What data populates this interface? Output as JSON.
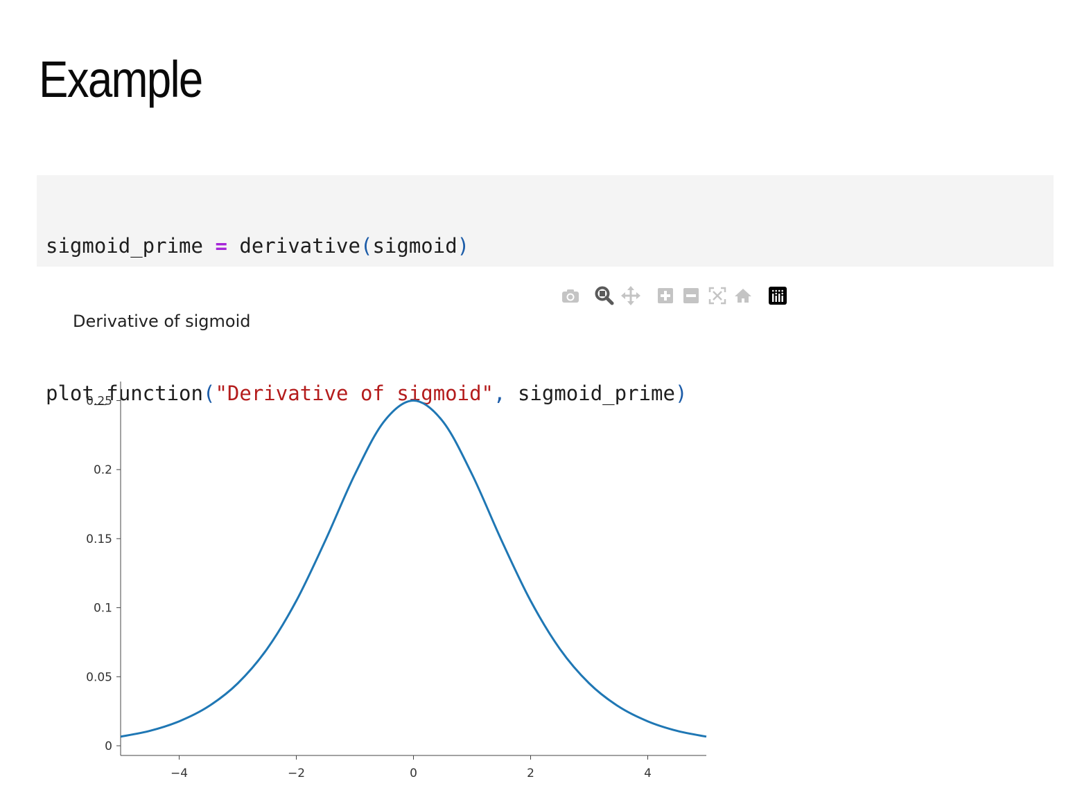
{
  "slide": {
    "title": "Example"
  },
  "code": {
    "line1": {
      "var": "sigmoid_prime ",
      "op": "=",
      "call": " derivative",
      "open": "(",
      "arg": "sigmoid",
      "close": ")"
    },
    "line2": {
      "call": "plot_function",
      "open": "(",
      "str": "\"Derivative of sigmoid\"",
      "comma": ",",
      "arg": " sigmoid_prime",
      "close": ")"
    }
  },
  "modebar": {
    "buttons": [
      "camera-icon",
      "zoom-icon",
      "pan-icon",
      "zoom-in-icon",
      "zoom-out-icon",
      "autoscale-icon",
      "reset-axes-icon",
      "plotly-logo-icon"
    ]
  },
  "colors": {
    "line": "#1f77b4",
    "code_bg": "#f4f4f4",
    "keyword_op": "#a626d8",
    "string": "#b41c1c",
    "paren": "#1c5ca8"
  },
  "chart_data": {
    "type": "line",
    "title": "Derivative of sigmoid",
    "xlabel": "",
    "ylabel": "",
    "xlim": [
      -5,
      5
    ],
    "ylim": [
      -0.007,
      0.265
    ],
    "x_ticks": [
      -4,
      -2,
      0,
      2,
      4
    ],
    "x_tick_labels": [
      "−4",
      "−2",
      "0",
      "2",
      "4"
    ],
    "y_ticks": [
      0,
      0.05,
      0.1,
      0.15,
      0.2,
      0.25
    ],
    "y_tick_labels": [
      "0",
      "0.05",
      "0.1",
      "0.15",
      "0.2",
      "0.25"
    ],
    "grid": false,
    "series": [
      {
        "x": [
          -5,
          -4.5,
          -4,
          -3.5,
          -3,
          -2.5,
          -2,
          -1.5,
          -1,
          -0.5,
          0,
          0.5,
          1,
          1.5,
          2,
          2.5,
          3,
          3.5,
          4,
          4.5,
          5
        ],
        "y": [
          0.0066,
          0.0108,
          0.0177,
          0.0285,
          0.0452,
          0.0701,
          0.105,
          0.1491,
          0.1966,
          0.235,
          0.25,
          0.235,
          0.1966,
          0.1491,
          0.105,
          0.0701,
          0.0452,
          0.0285,
          0.0177,
          0.0108,
          0.0066
        ]
      }
    ]
  }
}
